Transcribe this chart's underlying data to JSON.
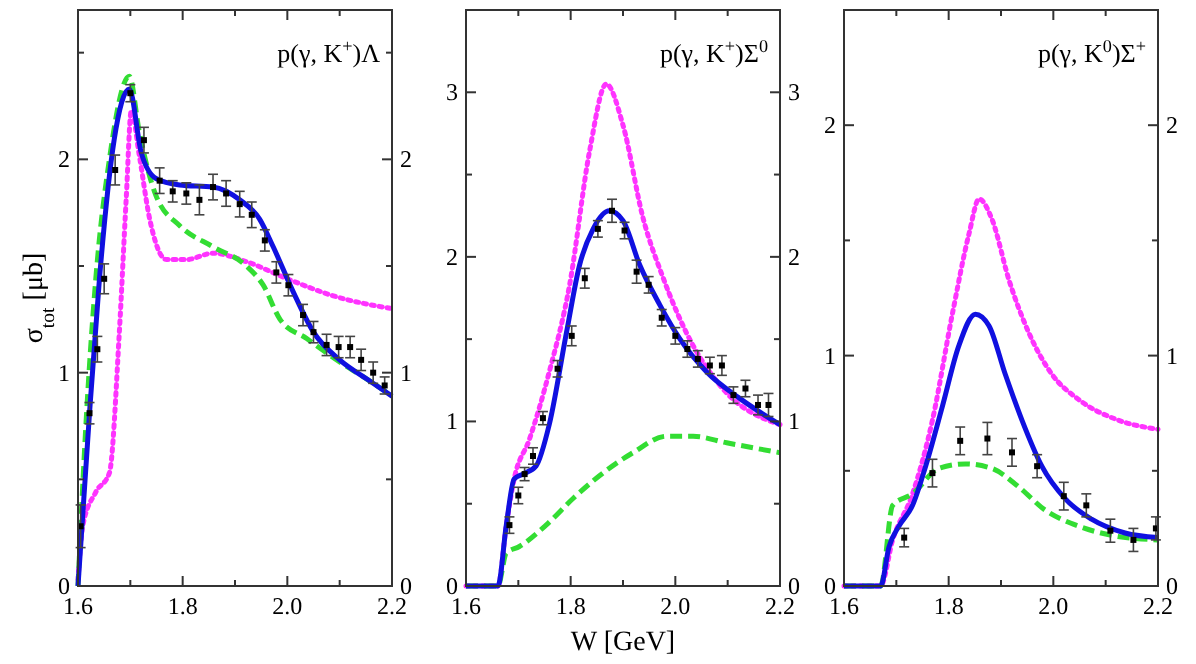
{
  "chart_data": [
    {
      "type": "line",
      "title": "p(γ, K$^{+}$)Λ",
      "ylabel": "σ$_{tot}$  [μb]",
      "xlim": [
        1.6,
        2.2
      ],
      "xticks": [
        1.6,
        {
          "value": 1.7,
          "label": null
        },
        1.8,
        {
          "value": 1.9,
          "label": null
        },
        {
          "value": 2,
          "label": "2.0"
        },
        {
          "value": 2.1,
          "label": null
        },
        2.2
      ],
      "ylim": [
        0,
        2.7
      ],
      "yticks": [
        0,
        {
          "value": 0.5,
          "label": null
        },
        1,
        {
          "value": 1.5,
          "label": null
        },
        2,
        {
          "value": 2.5,
          "label": null
        }
      ],
      "y2lim": [
        0,
        2.7
      ],
      "y2ticks": [
        0,
        {
          "value": 0.5,
          "label": null
        },
        1,
        {
          "value": 1.5,
          "label": null
        },
        2,
        {
          "value": 2.5,
          "label": null
        }
      ],
      "grid": false,
      "series": [
        {
          "line_style": "dotted",
          "color": "#ff33ff",
          "x": [
            1.6,
            1.609,
            1.634,
            1.66,
            1.679,
            1.692,
            1.702,
            1.717,
            1.737,
            1.769,
            1.807,
            1.858,
            1.922,
            2.0,
            2.088,
            2.2
          ],
          "values": [
            0.03,
            0.28,
            0.44,
            0.53,
            1.19,
            1.81,
            2.23,
            2.02,
            1.72,
            1.53,
            1.53,
            1.56,
            1.52,
            1.44,
            1.36,
            1.3
          ]
        },
        {
          "line_style": "dashed",
          "color": "#33dd33",
          "x": [
            1.6,
            1.615,
            1.634,
            1.66,
            1.698,
            1.717,
            1.749,
            1.794,
            1.858,
            1.922,
            1.954,
            1.986,
            2.037,
            2.1,
            2.152,
            2.2
          ],
          "values": [
            0,
            0.75,
            1.44,
            2.0,
            2.39,
            2.13,
            1.83,
            1.69,
            1.59,
            1.5,
            1.41,
            1.25,
            1.16,
            1.05,
            0.97,
            0.89
          ]
        },
        {
          "line_style": "solid",
          "color": "#1010e0",
          "x": [
            1.6,
            1.622,
            1.641,
            1.669,
            1.698,
            1.721,
            1.749,
            1.794,
            1.858,
            1.909,
            1.947,
            1.973,
            2.011,
            2.05,
            2.1,
            2.152,
            2.2
          ],
          "values": [
            0,
            0.81,
            1.44,
            2.09,
            2.33,
            2.03,
            1.91,
            1.88,
            1.87,
            1.81,
            1.72,
            1.59,
            1.38,
            1.19,
            1.06,
            0.97,
            0.89
          ]
        },
        {
          "type": "scatter",
          "marker": "square",
          "color": "#000000",
          "x": [
            1.605,
            1.622,
            1.637,
            1.65,
            1.671,
            1.7,
            1.726,
            1.756,
            1.781,
            1.807,
            1.832,
            1.858,
            1.883,
            1.909,
            1.932,
            1.957,
            1.979,
            2.002,
            2.03,
            2.05,
            2.075,
            2.098,
            2.12,
            2.141,
            2.164,
            2.186
          ],
          "values": [
            0.28,
            0.81,
            1.11,
            1.44,
            1.95,
            2.31,
            2.09,
            1.9,
            1.85,
            1.84,
            1.81,
            1.87,
            1.84,
            1.79,
            1.74,
            1.62,
            1.47,
            1.41,
            1.27,
            1.19,
            1.13,
            1.12,
            1.12,
            1.06,
            1.0,
            0.94
          ],
          "errors": [
            0.1,
            0.05,
            0.06,
            0.07,
            0.07,
            0.04,
            0.06,
            0.06,
            0.05,
            0.05,
            0.07,
            0.06,
            0.06,
            0.06,
            0.06,
            0.05,
            0.05,
            0.05,
            0.05,
            0.05,
            0.05,
            0.05,
            0.05,
            0.05,
            0.05,
            0.04
          ]
        }
      ]
    },
    {
      "type": "line",
      "title": "p(γ, K$^{+}$)Σ$^{0}$",
      "xlabel": "W [GeV]",
      "xlim": [
        1.6,
        2.2
      ],
      "xticks": [
        1.6,
        {
          "value": 1.7,
          "label": null
        },
        1.8,
        {
          "value": 1.9,
          "label": null
        },
        {
          "value": 2,
          "label": "2.0"
        },
        {
          "value": 2.1,
          "label": null
        },
        2.2
      ],
      "ylim": [
        0,
        3.5
      ],
      "yticks": [
        0,
        {
          "value": 0.5,
          "label": null
        },
        1,
        {
          "value": 1.5,
          "label": null
        },
        2,
        {
          "value": 2.5,
          "label": null
        },
        3
      ],
      "y2lim": [
        0,
        3.5
      ],
      "y2ticks": [
        0,
        {
          "value": 0.5,
          "label": null
        },
        1,
        {
          "value": 1.5,
          "label": null
        },
        2,
        {
          "value": 2.5,
          "label": null
        },
        3
      ],
      "grid": false,
      "series": [
        {
          "line_style": "dotted",
          "color": "#ff33ff",
          "x": [
            1.6,
            1.661,
            1.677,
            1.692,
            1.721,
            1.759,
            1.798,
            1.836,
            1.868,
            1.9,
            1.938,
            1.977,
            2.021,
            2.085,
            2.2
          ],
          "values": [
            0,
            0,
            0.37,
            0.65,
            0.89,
            1.3,
            1.83,
            2.64,
            3.05,
            2.8,
            2.24,
            1.87,
            1.54,
            1.22,
            0.98
          ]
        },
        {
          "line_style": "dashed",
          "color": "#33dd33",
          "x": [
            1.6,
            1.661,
            1.677,
            1.702,
            1.753,
            1.804,
            1.855,
            1.919,
            1.983,
            2.034,
            2.098,
            2.2
          ],
          "values": [
            0,
            0,
            0.2,
            0.24,
            0.37,
            0.53,
            0.67,
            0.81,
            0.91,
            0.91,
            0.87,
            0.81
          ]
        },
        {
          "line_style": "solid",
          "color": "#1010e0",
          "x": [
            1.6,
            1.661,
            1.677,
            1.692,
            1.709,
            1.734,
            1.759,
            1.792,
            1.817,
            1.843,
            1.874,
            1.9,
            1.932,
            1.97,
            2.009,
            2.06,
            2.123,
            2.2
          ],
          "values": [
            0,
            0,
            0.37,
            0.65,
            0.68,
            0.73,
            0.98,
            1.54,
            1.95,
            2.17,
            2.28,
            2.22,
            1.95,
            1.71,
            1.5,
            1.3,
            1.14,
            0.98
          ]
        },
        {
          "type": "scatter",
          "marker": "square",
          "color": "#000000",
          "x": [
            1.683,
            1.7,
            1.712,
            1.728,
            1.747,
            1.775,
            1.802,
            1.827,
            1.852,
            1.879,
            1.903,
            1.926,
            1.949,
            1.974,
            2.0,
            2.023,
            2.043,
            2.066,
            2.089,
            2.111,
            2.134,
            2.158,
            2.178
          ],
          "values": [
            0.37,
            0.55,
            0.68,
            0.79,
            1.02,
            1.32,
            1.52,
            1.87,
            2.17,
            2.28,
            2.16,
            1.91,
            1.83,
            1.63,
            1.52,
            1.44,
            1.38,
            1.34,
            1.34,
            1.16,
            1.2,
            1.1,
            1.1
          ],
          "errors": [
            0.05,
            0.05,
            0.04,
            0.05,
            0.04,
            0.05,
            0.06,
            0.06,
            0.05,
            0.07,
            0.05,
            0.07,
            0.05,
            0.05,
            0.05,
            0.05,
            0.05,
            0.05,
            0.06,
            0.05,
            0.05,
            0.06,
            0.07
          ]
        }
      ]
    },
    {
      "type": "line",
      "title": "p(γ, K$^{0}$)Σ$^{+}$",
      "xlim": [
        1.6,
        2.2
      ],
      "xticks": [
        1.6,
        {
          "value": 1.7,
          "label": null
        },
        1.8,
        {
          "value": 1.9,
          "label": null
        },
        {
          "value": 2,
          "label": "2.0"
        },
        {
          "value": 2.1,
          "label": null
        },
        2.2
      ],
      "ylim": [
        0,
        2.5
      ],
      "yticks": [
        0,
        {
          "value": 0.5,
          "label": null
        },
        1,
        {
          "value": 1.5,
          "label": null
        },
        2
      ],
      "y2lim": [
        0,
        2.5
      ],
      "y2ticks": [
        0,
        {
          "value": 0.5,
          "label": null
        },
        1,
        {
          "value": 1.5,
          "label": null
        },
        2
      ],
      "grid": false,
      "series": [
        {
          "line_style": "dotted",
          "color": "#ff33ff",
          "x": [
            1.6,
            1.67,
            1.693,
            1.731,
            1.769,
            1.807,
            1.839,
            1.858,
            1.883,
            1.915,
            1.953,
            1.997,
            2.048,
            2.124,
            2.2
          ],
          "values": [
            0,
            0,
            0.2,
            0.4,
            0.72,
            1.18,
            1.53,
            1.68,
            1.59,
            1.33,
            1.1,
            0.92,
            0.81,
            0.72,
            0.68
          ]
        },
        {
          "line_style": "dashed",
          "color": "#33dd33",
          "x": [
            1.6,
            1.67,
            1.693,
            1.731,
            1.781,
            1.832,
            1.883,
            1.934,
            1.984,
            2.048,
            2.111,
            2.2
          ],
          "values": [
            0,
            0,
            0.35,
            0.4,
            0.51,
            0.53,
            0.51,
            0.43,
            0.33,
            0.26,
            0.22,
            0.2
          ]
        },
        {
          "line_style": "solid",
          "color": "#1010e0",
          "x": [
            1.6,
            1.67,
            1.686,
            1.705,
            1.731,
            1.756,
            1.788,
            1.819,
            1.851,
            1.877,
            1.908,
            1.94,
            1.978,
            2.022,
            2.073,
            2.137,
            2.2
          ],
          "values": [
            0,
            0,
            0.17,
            0.26,
            0.35,
            0.52,
            0.78,
            1.04,
            1.18,
            1.13,
            0.92,
            0.72,
            0.52,
            0.38,
            0.29,
            0.23,
            0.21
          ]
        },
        {
          "type": "scatter",
          "marker": "square",
          "color": "#000000",
          "x": [
            1.715,
            1.769,
            1.822,
            1.874,
            1.921,
            1.969,
            2.02,
            2.063,
            2.109,
            2.153,
            2.196
          ],
          "values": [
            0.21,
            0.49,
            0.63,
            0.64,
            0.58,
            0.52,
            0.39,
            0.35,
            0.24,
            0.2,
            0.25
          ],
          "errors": [
            0.04,
            0.06,
            0.06,
            0.07,
            0.06,
            0.05,
            0.06,
            0.05,
            0.05,
            0.05,
            0.05
          ]
        }
      ]
    }
  ]
}
